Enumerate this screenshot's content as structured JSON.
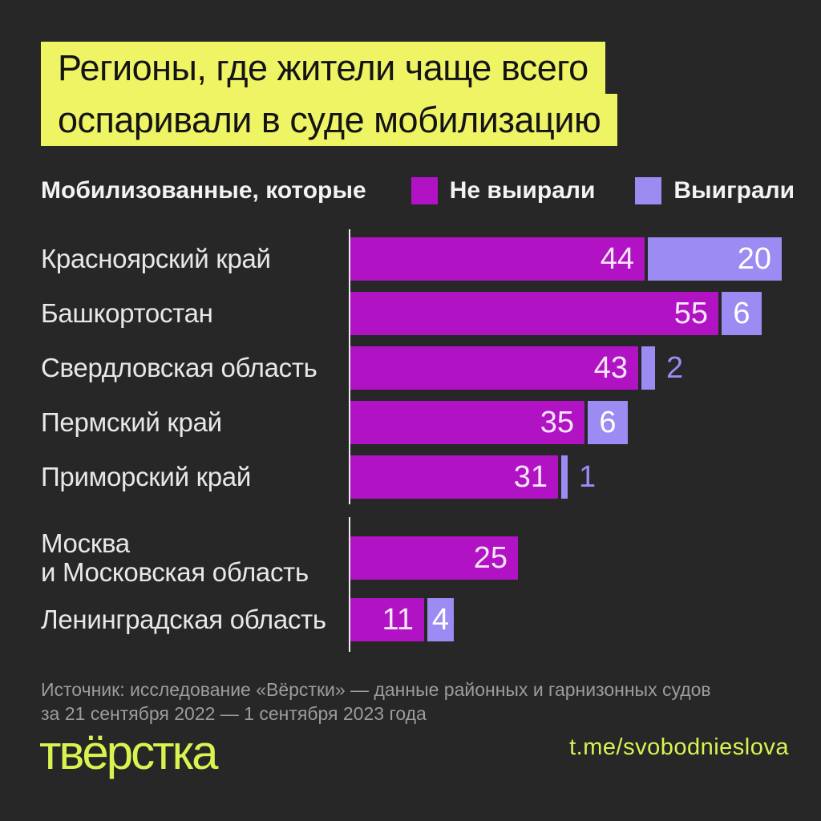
{
  "title": {
    "line1": "Регионы, где жители чаще всего",
    "line2": "оспаривали в суде мобилизацию"
  },
  "legend": {
    "prefix": "Мобилизованные, которые"
  },
  "chart_data": {
    "type": "bar",
    "orientation": "horizontal",
    "title": "Регионы, где жители чаще всего оспаривали в суде мобилизацию",
    "legend_prefix": "Мобилизованные, которые",
    "series": [
      {
        "name": "Не выирали",
        "color": "#b112c4"
      },
      {
        "name": "Выиграли",
        "color": "#9b8bf2"
      }
    ],
    "value_text_colors": [
      "#f5e6f8",
      "#ffffff"
    ],
    "x_range": [
      0,
      64
    ],
    "grid": false,
    "groups": [
      {
        "rows": [
          {
            "region": "Красноярский край",
            "segments": [
              {
                "series": 0,
                "value": 44,
                "label_pos": "inside-right"
              },
              {
                "series": 1,
                "value": 20,
                "label_pos": "inside-right"
              }
            ]
          },
          {
            "region": "Башкортостан",
            "segments": [
              {
                "series": 0,
                "value": 55,
                "label_pos": "inside-right"
              },
              {
                "series": 1,
                "value": 6,
                "label_pos": "inside-center"
              }
            ]
          },
          {
            "region": "Свердловская область",
            "segments": [
              {
                "series": 0,
                "value": 43,
                "label_pos": "inside-right"
              },
              {
                "series": 1,
                "value": 2,
                "label_pos": "outside"
              }
            ]
          },
          {
            "region": "Пермский край",
            "segments": [
              {
                "series": 0,
                "value": 35,
                "label_pos": "inside-right"
              },
              {
                "series": 1,
                "value": 6,
                "label_pos": "inside-center"
              }
            ]
          },
          {
            "region": "Приморский край",
            "segments": [
              {
                "series": 0,
                "value": 31,
                "label_pos": "inside-right"
              },
              {
                "series": 1,
                "value": 1,
                "label_pos": "outside"
              }
            ]
          }
        ]
      },
      {
        "rows": [
          {
            "region": "Москва\nи Московская область",
            "segments": [
              {
                "series": 0,
                "value": 25,
                "label_pos": "inside-right"
              }
            ]
          },
          {
            "region": "Ленинградская область",
            "segments": [
              {
                "series": 0,
                "value": 11,
                "label_pos": "inside-right"
              },
              {
                "series": 1,
                "value": 4,
                "label_pos": "inside-center"
              }
            ]
          }
        ]
      }
    ]
  },
  "source": {
    "line1": "Источник: исследование «Вёрстки»  — данные районных и гарнизонных судов",
    "line2": "за 21 сентября 2022 — 1 сентября 2023 года"
  },
  "footer": {
    "logo_text": "твёрстка",
    "link": "t.me/svobodnieslova"
  },
  "colors": {
    "background": "#272727",
    "title_highlight": "#eef464",
    "title_text": "#141414",
    "lost_bar": "#b112c4",
    "won_bar": "#9b8bf2",
    "axis_line": "#ececec",
    "region_label": "#e8e8e8",
    "source_text": "#9c9c9c",
    "brand_lime": "#d9f351"
  }
}
